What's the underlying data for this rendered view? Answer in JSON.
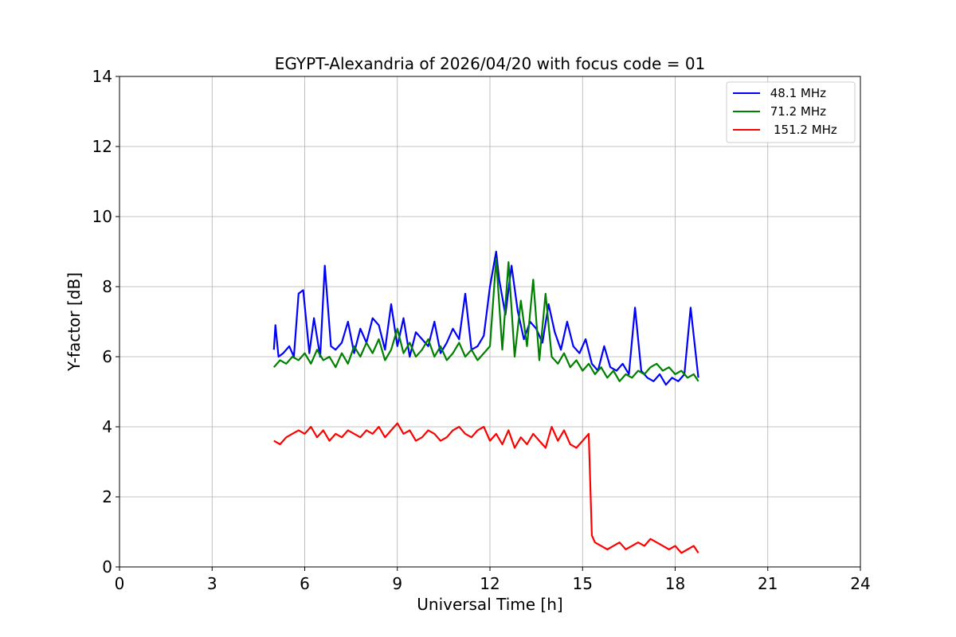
{
  "chart_data": {
    "type": "line",
    "title": "EGYPT-Alexandria of 2026/04/20 with focus code = 01",
    "xlabel": "Universal Time [h]",
    "ylabel": "Y-factor [dB]",
    "xlim": [
      0,
      24
    ],
    "ylim": [
      0,
      14
    ],
    "xticks": [
      0,
      3,
      6,
      9,
      12,
      15,
      18,
      21,
      24
    ],
    "yticks": [
      0,
      2,
      4,
      6,
      8,
      10,
      12,
      14
    ],
    "grid": true,
    "legend_position": "top-right",
    "series": [
      {
        "name": "48.1 MHz",
        "legend_label": " 48.1 MHz",
        "color": "#0000ff",
        "x": [
          5.0,
          5.05,
          5.15,
          5.3,
          5.5,
          5.65,
          5.8,
          5.95,
          6.15,
          6.3,
          6.5,
          6.65,
          6.85,
          7.0,
          7.2,
          7.4,
          7.6,
          7.8,
          8.0,
          8.2,
          8.4,
          8.6,
          8.8,
          9.0,
          9.2,
          9.4,
          9.6,
          9.8,
          10.0,
          10.2,
          10.4,
          10.6,
          10.8,
          11.0,
          11.2,
          11.4,
          11.6,
          11.8,
          12.0,
          12.2,
          12.3,
          12.5,
          12.7,
          12.9,
          13.1,
          13.3,
          13.5,
          13.7,
          13.9,
          14.1,
          14.3,
          14.5,
          14.7,
          14.9,
          15.1,
          15.3,
          15.5,
          15.7,
          15.9,
          16.1,
          16.3,
          16.5,
          16.7,
          16.9,
          17.1,
          17.3,
          17.5,
          17.7,
          17.9,
          18.1,
          18.3,
          18.5,
          18.75
        ],
        "y": [
          6.2,
          6.9,
          6.0,
          6.1,
          6.3,
          6.0,
          7.8,
          7.9,
          6.1,
          7.1,
          6.0,
          8.6,
          6.3,
          6.2,
          6.4,
          7.0,
          6.1,
          6.8,
          6.4,
          7.1,
          6.9,
          6.2,
          7.5,
          6.3,
          7.1,
          6.0,
          6.7,
          6.5,
          6.3,
          7.0,
          6.1,
          6.4,
          6.8,
          6.5,
          7.8,
          6.2,
          6.3,
          6.6,
          8.0,
          9.0,
          8.2,
          7.2,
          8.6,
          7.3,
          6.5,
          7.0,
          6.8,
          6.4,
          7.5,
          6.7,
          6.2,
          7.0,
          6.3,
          6.1,
          6.5,
          5.8,
          5.6,
          6.3,
          5.7,
          5.6,
          5.8,
          5.5,
          7.4,
          5.6,
          5.4,
          5.3,
          5.5,
          5.2,
          5.4,
          5.3,
          5.5,
          7.4,
          5.4
        ]
      },
      {
        "name": "71.2 MHz",
        "legend_label": " 71.2 MHz",
        "color": "#008000",
        "x": [
          5.0,
          5.2,
          5.4,
          5.6,
          5.8,
          6.0,
          6.2,
          6.4,
          6.6,
          6.8,
          7.0,
          7.2,
          7.4,
          7.6,
          7.8,
          8.0,
          8.2,
          8.4,
          8.6,
          8.8,
          9.0,
          9.2,
          9.4,
          9.6,
          9.8,
          10.0,
          10.2,
          10.4,
          10.6,
          10.8,
          11.0,
          11.2,
          11.4,
          11.6,
          11.8,
          12.0,
          12.2,
          12.4,
          12.6,
          12.8,
          13.0,
          13.2,
          13.4,
          13.6,
          13.8,
          14.0,
          14.2,
          14.4,
          14.6,
          14.8,
          15.0,
          15.2,
          15.4,
          15.6,
          15.8,
          16.0,
          16.2,
          16.4,
          16.6,
          16.8,
          17.0,
          17.2,
          17.4,
          17.6,
          17.8,
          18.0,
          18.2,
          18.4,
          18.6,
          18.75
        ],
        "y": [
          5.7,
          5.9,
          5.8,
          6.0,
          5.9,
          6.1,
          5.8,
          6.2,
          5.9,
          6.0,
          5.7,
          6.1,
          5.8,
          6.3,
          6.0,
          6.4,
          6.1,
          6.5,
          5.9,
          6.2,
          6.8,
          6.1,
          6.4,
          6.0,
          6.2,
          6.5,
          6.0,
          6.3,
          5.9,
          6.1,
          6.4,
          6.0,
          6.2,
          5.9,
          6.1,
          6.3,
          8.8,
          6.2,
          8.7,
          6.0,
          7.6,
          6.3,
          8.2,
          5.9,
          7.8,
          6.0,
          5.8,
          6.1,
          5.7,
          5.9,
          5.6,
          5.8,
          5.5,
          5.7,
          5.4,
          5.6,
          5.3,
          5.5,
          5.4,
          5.6,
          5.5,
          5.7,
          5.8,
          5.6,
          5.7,
          5.5,
          5.6,
          5.4,
          5.5,
          5.3
        ]
      },
      {
        "name": "151.2 MHz",
        "legend_label": "151.2 MHz",
        "color": "#ff0000",
        "x": [
          5.0,
          5.2,
          5.4,
          5.6,
          5.8,
          6.0,
          6.2,
          6.4,
          6.6,
          6.8,
          7.0,
          7.2,
          7.4,
          7.6,
          7.8,
          8.0,
          8.2,
          8.4,
          8.6,
          8.8,
          9.0,
          9.2,
          9.4,
          9.6,
          9.8,
          10.0,
          10.2,
          10.4,
          10.6,
          10.8,
          11.0,
          11.2,
          11.4,
          11.6,
          11.8,
          12.0,
          12.2,
          12.4,
          12.6,
          12.8,
          13.0,
          13.2,
          13.4,
          13.6,
          13.8,
          14.0,
          14.2,
          14.4,
          14.6,
          14.8,
          15.0,
          15.2,
          15.3,
          15.4,
          15.6,
          15.8,
          16.0,
          16.2,
          16.4,
          16.6,
          16.8,
          17.0,
          17.2,
          17.4,
          17.6,
          17.8,
          18.0,
          18.2,
          18.4,
          18.6,
          18.75
        ],
        "y": [
          3.6,
          3.5,
          3.7,
          3.8,
          3.9,
          3.8,
          4.0,
          3.7,
          3.9,
          3.6,
          3.8,
          3.7,
          3.9,
          3.8,
          3.7,
          3.9,
          3.8,
          4.0,
          3.7,
          3.9,
          4.1,
          3.8,
          3.9,
          3.6,
          3.7,
          3.9,
          3.8,
          3.6,
          3.7,
          3.9,
          4.0,
          3.8,
          3.7,
          3.9,
          4.0,
          3.6,
          3.8,
          3.5,
          3.9,
          3.4,
          3.7,
          3.5,
          3.8,
          3.6,
          3.4,
          4.0,
          3.6,
          3.9,
          3.5,
          3.4,
          3.6,
          3.8,
          0.9,
          0.7,
          0.6,
          0.5,
          0.6,
          0.7,
          0.5,
          0.6,
          0.7,
          0.6,
          0.8,
          0.7,
          0.6,
          0.5,
          0.6,
          0.4,
          0.5,
          0.6,
          0.4
        ]
      }
    ],
    "annotations": []
  }
}
